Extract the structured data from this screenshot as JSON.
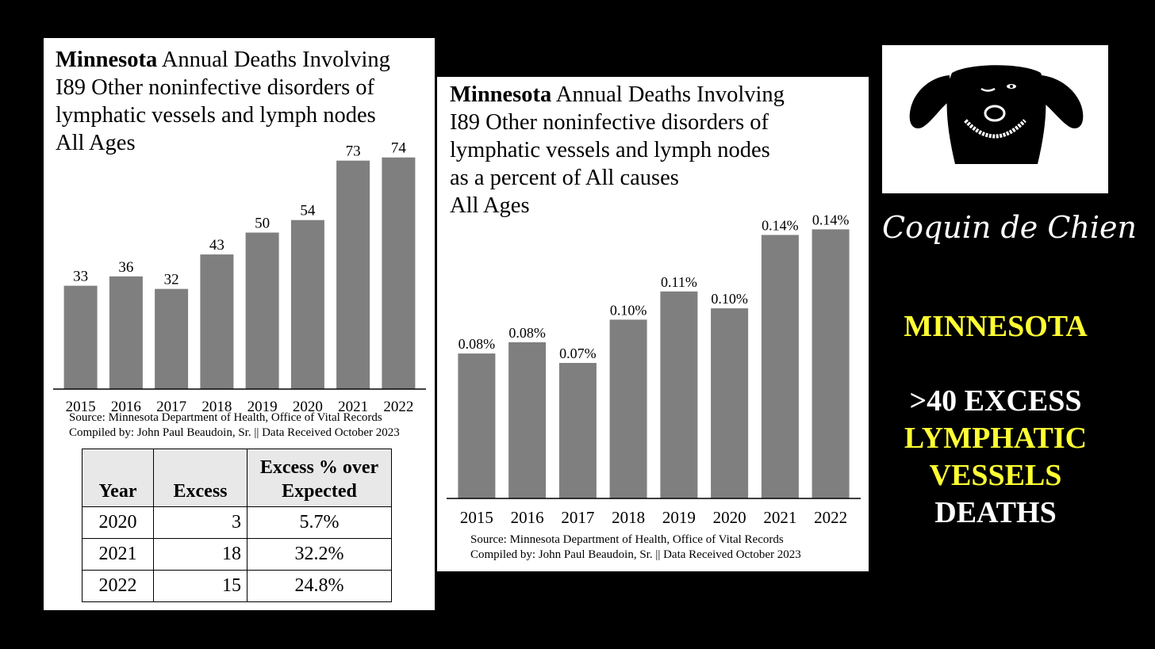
{
  "left_panel": {
    "title_bold": "Minnesota",
    "title_rest": " Annual Deaths Involving",
    "title_line2": "I89 Other noninfective disorders of",
    "title_line3": "lymphatic vessels and lymph nodes",
    "title_line4": "All Ages",
    "source_line1": "Source:  Minnesota Department of Health, Office of Vital Records",
    "source_line2": "Compiled by:  John Paul Beaudoin, Sr. || Data Received October 2023",
    "table": {
      "headers": [
        "Year",
        "Excess",
        "Excess % over Expected"
      ],
      "header_pct_line1": "Excess % over",
      "header_pct_line2": "Expected",
      "rows": [
        {
          "year": "2020",
          "excess": "3",
          "pct": "5.7%"
        },
        {
          "year": "2021",
          "excess": "18",
          "pct": "32.2%"
        },
        {
          "year": "2022",
          "excess": "15",
          "pct": "24.8%"
        }
      ]
    }
  },
  "right_panel": {
    "title_bold": "Minnesota",
    "title_rest": " Annual Deaths Involving",
    "title_line2": "I89 Other noninfective disorders of",
    "title_line3": "lymphatic vessels and lymph nodes",
    "title_line4": "as a percent of All causes",
    "title_line5": "All Ages",
    "source_line1": "Source:  Minnesota Department of Health, Office of Vital Records",
    "source_line2": "Compiled by:  John Paul Beaudoin, Sr. || Data Received October 2023"
  },
  "chart_data": [
    {
      "type": "bar",
      "title": "Minnesota Annual Deaths Involving I89 Other noninfective disorders of lymphatic vessels and lymph nodes All Ages",
      "categories": [
        "2015",
        "2016",
        "2017",
        "2018",
        "2019",
        "2020",
        "2021",
        "2022"
      ],
      "values": [
        33,
        36,
        32,
        43,
        50,
        54,
        73,
        74
      ],
      "labels": [
        "33",
        "36",
        "32",
        "43",
        "50",
        "54",
        "73",
        "74"
      ],
      "ylim": [
        0,
        80
      ],
      "bar_color": "#7f7f7f",
      "grid": false
    },
    {
      "type": "bar",
      "title": "Minnesota Annual Deaths Involving I89 Other noninfective disorders of lymphatic vessels and lymph nodes as a percent of All causes All Ages",
      "categories": [
        "2015",
        "2016",
        "2017",
        "2018",
        "2019",
        "2020",
        "2021",
        "2022"
      ],
      "values": [
        0.077,
        0.083,
        0.072,
        0.095,
        0.11,
        0.101,
        0.14,
        0.143
      ],
      "labels": [
        "0.08%",
        "0.08%",
        "0.07%",
        "0.10%",
        "0.11%",
        "0.10%",
        "0.14%",
        "0.14%"
      ],
      "ylim": [
        0,
        0.16
      ],
      "bar_color": "#7f7f7f",
      "grid": false
    }
  ],
  "sidebar": {
    "logo_icon": "dog-face-icon",
    "brand": "Coquin de Chien",
    "state": "MINNESOTA",
    "headline_1": ">40 EXCESS",
    "headline_2": "LYMPHATIC",
    "headline_3": "VESSELS",
    "headline_4": "DEATHS",
    "accent_yellow": "#ffff33"
  }
}
